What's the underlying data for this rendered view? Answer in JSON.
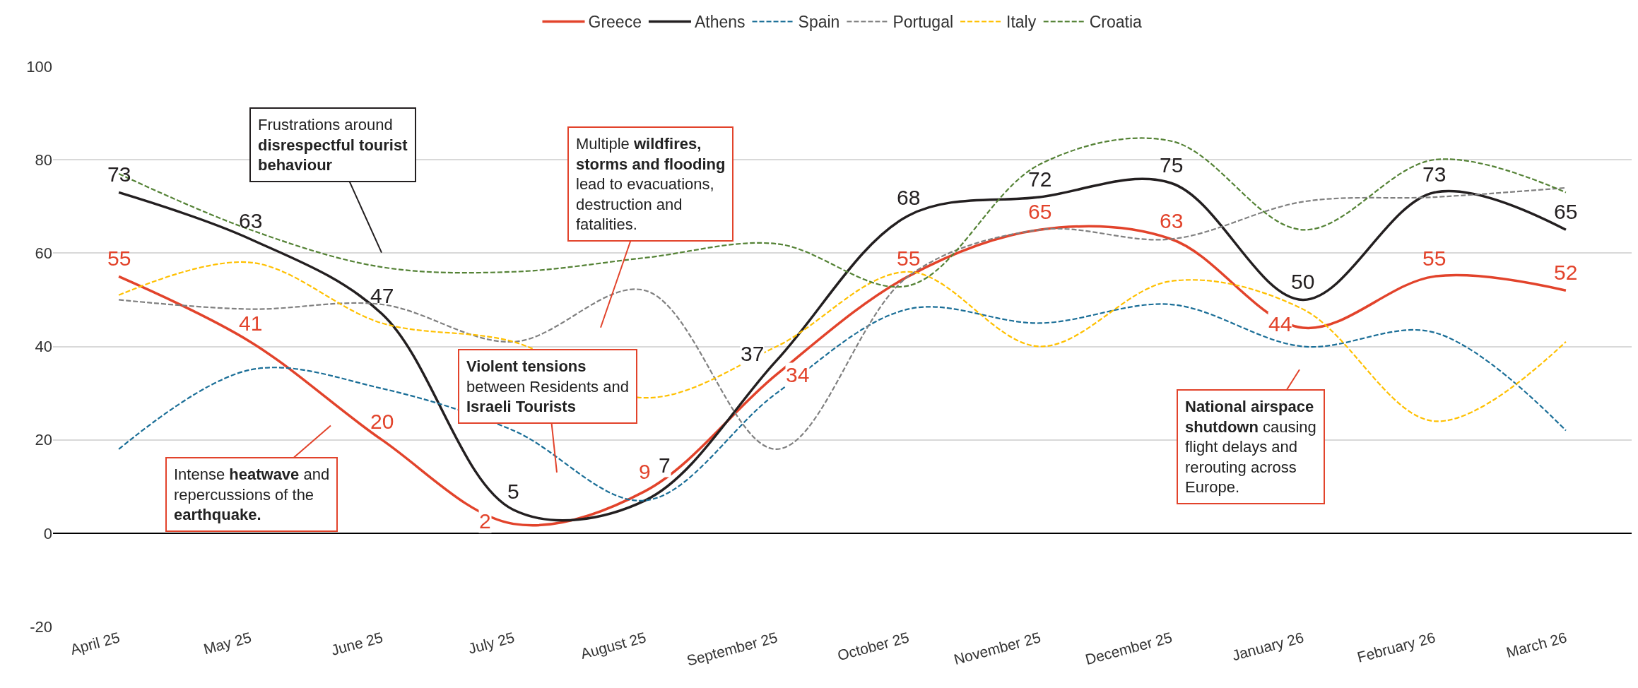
{
  "chart_data": {
    "type": "line",
    "categories": [
      "April 25",
      "May 25",
      "June 25",
      "July 25",
      "August 25",
      "September 25",
      "October 25",
      "November 25",
      "December 25",
      "January 26",
      "February 26",
      "March 26"
    ],
    "series": [
      {
        "name": "Greece",
        "color": "#e2432b",
        "line_style": "solid",
        "values": [
          55,
          41,
          20,
          2,
          9,
          34,
          55,
          65,
          63,
          44,
          55,
          52
        ],
        "value_labels": [
          "55",
          "41",
          "20",
          "2",
          "9",
          "34",
          "55",
          "65",
          "63",
          "44",
          "55",
          "52"
        ]
      },
      {
        "name": "Athens",
        "color": "#231f20",
        "line_style": "solid",
        "values": [
          73,
          63,
          47,
          5,
          7,
          37,
          68,
          72,
          75,
          50,
          73,
          65
        ],
        "value_labels": [
          "73",
          "63",
          "47",
          "5",
          "7",
          "37",
          "68",
          "72",
          "75",
          "50",
          "73",
          "65"
        ]
      },
      {
        "name": "Spain",
        "color": "#1a6e97",
        "line_style": "dashed",
        "values": [
          18,
          35,
          31,
          22,
          7,
          30,
          48,
          45,
          49,
          40,
          43,
          22
        ]
      },
      {
        "name": "Portugal",
        "color": "#808080",
        "line_style": "dashed",
        "values": [
          50,
          48,
          49,
          41,
          52,
          18,
          55,
          65,
          63,
          71,
          72,
          74
        ]
      },
      {
        "name": "Italy",
        "color": "#ffc000",
        "line_style": "dashed",
        "values": [
          51,
          58,
          45,
          41,
          29,
          40,
          56,
          40,
          54,
          48,
          24,
          41
        ]
      },
      {
        "name": "Croatia",
        "color": "#548235",
        "line_style": "dashed",
        "values": [
          77,
          65,
          57,
          56,
          59,
          62,
          53,
          79,
          84,
          65,
          80,
          73
        ]
      }
    ],
    "ylim": [
      -20,
      100
    ],
    "yticks": [
      -20,
      0,
      20,
      40,
      60,
      80,
      100
    ],
    "grid": "y",
    "legend": "top",
    "marker": "none",
    "annotations": [
      "Frustrations around disrespectful tourist behaviour",
      "Intense heatwave and repercussions of the earthquake.",
      "Multiple wildfires, storms and flooding lead to evacuations, destruction and fatalities.",
      "Violent tensions between Residents and Israeli Tourists",
      "National airspace shutdown causing flight delays and rerouting across Europe."
    ]
  }
}
